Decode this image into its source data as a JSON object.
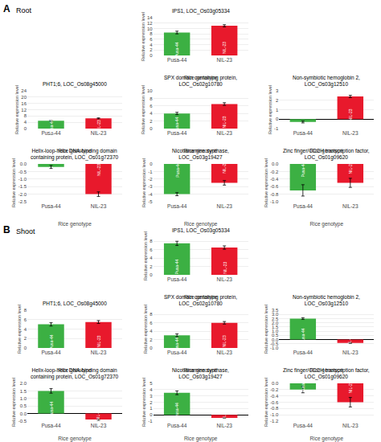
{
  "chart_data": [
    {
      "type": "bar",
      "section": "A",
      "section_title": "Root",
      "title": "IPS1, LOC_Os03g05334",
      "categories": [
        "Pusa-44",
        "NIL-23"
      ],
      "values": [
        8.5,
        11.0
      ],
      "errors": [
        0.5,
        0.4
      ],
      "colors": [
        "#3cb043",
        "#e8192c"
      ],
      "xlabel": "Rice genotype",
      "ylabel": "Relative expression level",
      "ylim": [
        0,
        14
      ],
      "yticks": [
        0,
        2,
        4,
        6,
        8,
        10,
        12,
        14
      ],
      "grid": true,
      "annotations": [
        {
          "text": "Pusa-44",
          "x": 0
        },
        {
          "text": "NIL-23",
          "x": 1
        }
      ]
    },
    {
      "type": "bar",
      "section": "A",
      "section_title": "Root",
      "title": "PHT1;6, LOC_Os08g45000",
      "categories": [
        "Pusa-44",
        "NIL-23"
      ],
      "values": [
        5.0,
        6.5
      ],
      "errors": [
        0.4,
        0.3
      ],
      "colors": [
        "#3cb043",
        "#e8192c"
      ],
      "xlabel": "Rice genotype",
      "ylabel": "Relative expression level",
      "ylim": [
        0,
        24
      ],
      "yticks": [
        0,
        4,
        8,
        12,
        16,
        20,
        24
      ],
      "grid": true,
      "annotations": [
        {
          "text": "Pusa-44",
          "x": 0
        },
        {
          "text": "NIL-23",
          "x": 1
        }
      ]
    },
    {
      "type": "bar",
      "section": "A",
      "section_title": "Root",
      "title": "SPX domain containing protein,\nLOC_Os02g10780",
      "categories": [
        "Pusa-44",
        "NIL-23"
      ],
      "values": [
        4.0,
        6.5
      ],
      "errors": [
        0.3,
        0.35
      ],
      "colors": [
        "#3cb043",
        "#e8192c"
      ],
      "xlabel": "Rice genotype",
      "ylabel": "Relative expression level",
      "ylim": [
        0,
        10
      ],
      "yticks": [
        0,
        2,
        4,
        6,
        8,
        10
      ],
      "grid": true,
      "annotations": [
        {
          "text": "Pusa-44",
          "x": 0
        },
        {
          "text": "NIL-23",
          "x": 1
        }
      ]
    },
    {
      "type": "bar",
      "section": "A",
      "section_title": "Root",
      "title": "Non-symbiotic hemoglobin 2,\nLOC_Os03g12510",
      "categories": [
        "Pusa-44",
        "NIL-23"
      ],
      "values": [
        -0.3,
        2.4
      ],
      "errors": [
        0.1,
        0.12
      ],
      "colors": [
        "#3cb043",
        "#e8192c"
      ],
      "xlabel": "Rice genotype",
      "ylabel": "Relative expression level",
      "ylim": [
        -1,
        3
      ],
      "yticks": [
        -1,
        0,
        1,
        2,
        3
      ],
      "grid": true,
      "annotations": [
        {
          "text": "NIL-23",
          "x": 1
        }
      ]
    },
    {
      "type": "bar",
      "section": "A",
      "section_title": "Root",
      "title": "Helix-loop-helix DNA-binding domain\ncontaining protein, LOC_Os01g72370",
      "categories": [
        "Pusa-44",
        "NIL-23"
      ],
      "values": [
        -0.2,
        -2.0
      ],
      "errors": [
        0.1,
        0.15
      ],
      "colors": [
        "#3cb043",
        "#e8192c"
      ],
      "xlabel": "Rice genotype",
      "ylabel": "Relative expression level",
      "ylim": [
        -2.5,
        0
      ],
      "yticks": [
        {
          "value": -2.5,
          "label": "-2.5"
        },
        {
          "value": -2,
          "label": "-2.0"
        },
        {
          "value": -1.5,
          "label": "-1.5"
        },
        {
          "value": -1,
          "label": "-1.0"
        },
        {
          "value": -0.5,
          "label": "-0.5"
        },
        {
          "value": 0,
          "label": "0.0"
        }
      ],
      "grid": true,
      "annotations": [
        {
          "text": "NIL-23",
          "x": 1
        }
      ]
    },
    {
      "type": "bar",
      "section": "A",
      "section_title": "Root",
      "title": "Nicotianamine synthase,\nLOC_Os03g19427",
      "categories": [
        "Pusa-44",
        "NIL-23"
      ],
      "values": [
        -4.0,
        -2.5
      ],
      "errors": [
        0.2,
        0.3
      ],
      "colors": [
        "#3cb043",
        "#e8192c"
      ],
      "xlabel": "Rice genotype",
      "ylabel": "Relative expression level",
      "ylim": [
        -5,
        0
      ],
      "yticks": [
        -5,
        -4,
        -3,
        -2,
        -1,
        0
      ],
      "grid": true,
      "annotations": [
        {
          "text": "Pusa-44",
          "x": 0
        },
        {
          "text": "NIL-23",
          "x": 1
        }
      ]
    },
    {
      "type": "bar",
      "section": "A",
      "section_title": "Root",
      "title": "Zinc finger/CCCH transcription factor,\nLOC_Os01g09620",
      "categories": [
        "Pusa-44",
        "NIL-23"
      ],
      "values": [
        -0.7,
        -0.5
      ],
      "errors": [
        0.15,
        0.12
      ],
      "colors": [
        "#3cb043",
        "#e8192c"
      ],
      "xlabel": "Rice genotype",
      "ylabel": "Relative expression level",
      "ylim": [
        -1.0,
        0
      ],
      "yticks": [
        {
          "value": -1,
          "label": "-1.0"
        },
        {
          "value": -0.8,
          "label": "-0.8"
        },
        {
          "value": -0.6,
          "label": "-0.6"
        },
        {
          "value": -0.4,
          "label": "-0.4"
        },
        {
          "value": -0.2,
          "label": "-0.2"
        },
        {
          "value": 0,
          "label": "0.0"
        }
      ],
      "grid": true,
      "annotations": [
        {
          "text": "Pusa-44",
          "x": 0
        },
        {
          "text": "NIL-23",
          "x": 1
        }
      ]
    },
    {
      "type": "bar",
      "section": "B",
      "section_title": "Shoot",
      "title": "IPS1, LOC_Os03g05334",
      "categories": [
        "Pusa-44",
        "NIL-23"
      ],
      "values": [
        7.5,
        6.5
      ],
      "errors": [
        0.5,
        0.4
      ],
      "colors": [
        "#3cb043",
        "#e8192c"
      ],
      "xlabel": "Rice genotype",
      "ylabel": "Relative expression level",
      "ylim": [
        0,
        9
      ],
      "yticks": [
        0,
        2,
        4,
        6,
        8
      ],
      "grid": true,
      "annotations": [
        {
          "text": "Pusa-44",
          "x": 0
        },
        {
          "text": "NIL-23",
          "x": 1
        }
      ]
    },
    {
      "type": "bar",
      "section": "B",
      "section_title": "Shoot",
      "title": "PHT1;6, LOC_Os08g45000",
      "categories": [
        "Pusa-44",
        "NIL-23"
      ],
      "values": [
        5.0,
        5.5
      ],
      "errors": [
        0.35,
        0.3
      ],
      "colors": [
        "#3cb043",
        "#e8192c"
      ],
      "xlabel": "Rice genotype",
      "ylabel": "Relative expression level",
      "ylim": [
        0,
        8
      ],
      "yticks": [
        0,
        2,
        4,
        6,
        8
      ],
      "grid": true,
      "annotations": [
        {
          "text": "Pusa-44",
          "x": 0
        },
        {
          "text": "NIL-23",
          "x": 1
        }
      ]
    },
    {
      "type": "bar",
      "section": "B",
      "section_title": "Shoot",
      "title": "SPX domain containing protein,\nLOC_Os02g10780",
      "categories": [
        "Pusa-44",
        "NIL-23"
      ],
      "values": [
        3.0,
        6.0
      ],
      "errors": [
        0.35,
        0.3
      ],
      "colors": [
        "#3cb043",
        "#e8192c"
      ],
      "xlabel": "Rice genotype",
      "ylabel": "Relative expression level",
      "ylim": [
        0,
        9
      ],
      "yticks": [
        0,
        2,
        4,
        6,
        8
      ],
      "grid": true,
      "annotations": [
        {
          "text": "Pusa-44",
          "x": 0
        },
        {
          "text": "NIL-23",
          "x": 1
        }
      ]
    },
    {
      "type": "bar",
      "section": "B",
      "section_title": "Shoot",
      "title": "Non-symbiotic hemoglobin 2,\nLOC_Os03g12510",
      "categories": [
        "Pusa-44",
        "NIL-23"
      ],
      "values": [
        2.5,
        -0.4
      ],
      "errors": [
        0.1,
        0.05
      ],
      "colors": [
        "#3cb043",
        "#e8192c"
      ],
      "xlabel": "Rice genotype",
      "ylabel": "Relative expression level",
      "ylim": [
        -1,
        3.5
      ],
      "yticks": [
        {
          "value": -1,
          "label": "-1.0"
        },
        {
          "value": -0.5,
          "label": "-0.5"
        },
        {
          "value": 0,
          "label": "0.0"
        },
        0.5,
        {
          "value": 1,
          "label": "1.0"
        },
        1.5,
        {
          "value": 2,
          "label": "2.0"
        },
        2.5,
        {
          "value": 3,
          "label": "3.0"
        },
        3.5
      ],
      "grid": true,
      "annotations": [
        {
          "text": "Pusa-44",
          "x": 0
        },
        {
          "text": "NIL-23",
          "x": 1
        }
      ]
    },
    {
      "type": "bar",
      "section": "B",
      "section_title": "Shoot",
      "title": "Helix-loop-helix DNA-binding domain\ncontaining protein, LOC_Os01g72370",
      "categories": [
        "Pusa-44",
        "NIL-23"
      ],
      "values": [
        1.5,
        -0.4
      ],
      "errors": [
        0.15,
        0.05
      ],
      "colors": [
        "#3cb043",
        "#e8192c"
      ],
      "xlabel": "Rice genotype",
      "ylabel": "Relative expression level",
      "ylim": [
        -0.5,
        2.0
      ],
      "yticks": [
        {
          "value": -0.5,
          "label": "-0.5"
        },
        {
          "value": 0,
          "label": "0.0"
        },
        0.5,
        {
          "value": 1,
          "label": "1.0"
        },
        1.5,
        {
          "value": 2,
          "label": "2.0"
        }
      ],
      "grid": true,
      "annotations": [
        {
          "text": "Pusa-44",
          "x": 0
        },
        {
          "text": "NIL-23",
          "x": 1
        }
      ]
    },
    {
      "type": "bar",
      "section": "B",
      "section_title": "Shoot",
      "title": "Nicotianamine synthase,\nLOC_Os03g19427",
      "categories": [
        "Pusa-44",
        "NIL-23"
      ],
      "values": [
        3.5,
        -0.5
      ],
      "errors": [
        0.3,
        0.05
      ],
      "colors": [
        "#3cb043",
        "#e8192c"
      ],
      "xlabel": "Rice genotype",
      "ylabel": "Relative expression level",
      "ylim": [
        -1,
        5
      ],
      "yticks": [
        -1,
        0,
        1,
        2,
        3,
        4,
        5
      ],
      "grid": true,
      "annotations": [
        {
          "text": "Pusa-44",
          "x": 0
        },
        {
          "text": "NIL-23",
          "x": 1
        }
      ]
    },
    {
      "type": "bar",
      "section": "B",
      "section_title": "Shoot",
      "title": "Zinc finger/CCCH transcription factor,\nLOC_Os01g09620",
      "categories": [
        "Pusa-44",
        "NIL-23"
      ],
      "values": [
        -0.2,
        -0.6
      ],
      "errors": [
        0.1,
        0.15
      ],
      "colors": [
        "#3cb043",
        "#e8192c"
      ],
      "xlabel": "Rice genotype",
      "ylabel": "Relative expression level",
      "ylim": [
        -1.2,
        0
      ],
      "yticks": [
        {
          "value": -1.2,
          "label": "-1.2"
        },
        {
          "value": -1,
          "label": "-1.0"
        },
        {
          "value": -0.8,
          "label": "-0.8"
        },
        {
          "value": -0.6,
          "label": "-0.6"
        },
        {
          "value": -0.4,
          "label": "-0.4"
        },
        {
          "value": -0.2,
          "label": "-0.2"
        },
        {
          "value": 0,
          "label": "0.0"
        }
      ],
      "grid": true,
      "annotations": [
        {
          "text": "Pusa-44",
          "x": 0
        },
        {
          "text": "NIL-23",
          "x": 1
        }
      ]
    }
  ]
}
